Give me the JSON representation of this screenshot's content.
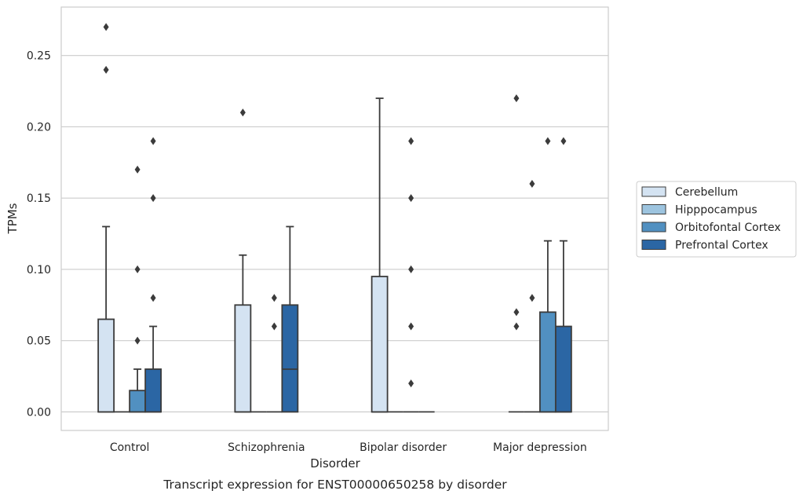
{
  "chart_data": {
    "type": "box",
    "title": "",
    "caption": "Transcript expression for ENST00000650258 by disorder",
    "xlabel": "Disorder",
    "ylabel": "TPMs",
    "ylim": [
      -0.013,
      0.284
    ],
    "yticks": [
      0.0,
      0.05,
      0.1,
      0.15,
      0.2,
      0.25
    ],
    "ytick_labels": [
      "0.00",
      "0.05",
      "0.10",
      "0.15",
      "0.20",
      "0.25"
    ],
    "grid": "horizontal",
    "legend_position": "right",
    "categories": [
      "Control",
      "Schizophrenia",
      "Bipolar disorder",
      "Major depression"
    ],
    "series": [
      {
        "name": "Cerebellum",
        "color": "#d4e3f2",
        "boxes": [
          {
            "q1": 0.0,
            "median": 0.0,
            "q3": 0.065,
            "whisker_low": 0.0,
            "whisker_high": 0.13,
            "outliers": [
              0.24,
              0.27
            ]
          },
          {
            "q1": 0.0,
            "median": 0.0,
            "q3": 0.075,
            "whisker_low": 0.0,
            "whisker_high": 0.11,
            "outliers": [
              0.21
            ]
          },
          {
            "q1": 0.0,
            "median": 0.0,
            "q3": 0.095,
            "whisker_low": 0.0,
            "whisker_high": 0.22,
            "outliers": []
          },
          {
            "q1": 0.0,
            "median": 0.0,
            "q3": 0.0,
            "whisker_low": 0.0,
            "whisker_high": 0.0,
            "outliers": [
              0.06,
              0.07,
              0.22
            ]
          }
        ]
      },
      {
        "name": "Hipppocampus",
        "color": "#9dc4df",
        "boxes": [
          {
            "q1": 0.0,
            "median": 0.0,
            "q3": 0.0,
            "whisker_low": 0.0,
            "whisker_high": 0.0,
            "outliers": []
          },
          {
            "q1": 0.0,
            "median": 0.0,
            "q3": 0.0,
            "whisker_low": 0.0,
            "whisker_high": 0.0,
            "outliers": []
          },
          {
            "q1": 0.0,
            "median": 0.0,
            "q3": 0.0,
            "whisker_low": 0.0,
            "whisker_high": 0.0,
            "outliers": []
          },
          {
            "q1": 0.0,
            "median": 0.0,
            "q3": 0.0,
            "whisker_low": 0.0,
            "whisker_high": 0.0,
            "outliers": [
              0.08,
              0.16
            ]
          }
        ]
      },
      {
        "name": "Orbitofontal Cortex",
        "color": "#5190c1",
        "boxes": [
          {
            "q1": 0.0,
            "median": 0.0,
            "q3": 0.015,
            "whisker_low": 0.0,
            "whisker_high": 0.03,
            "outliers": [
              0.05,
              0.1,
              0.17
            ]
          },
          {
            "q1": 0.0,
            "median": 0.0,
            "q3": 0.0,
            "whisker_low": 0.0,
            "whisker_high": 0.0,
            "outliers": [
              0.06,
              0.08
            ]
          },
          {
            "q1": 0.0,
            "median": 0.0,
            "q3": 0.0,
            "whisker_low": 0.0,
            "whisker_high": 0.0,
            "outliers": [
              0.02,
              0.06,
              0.1,
              0.15,
              0.19
            ]
          },
          {
            "q1": 0.0,
            "median": 0.0,
            "q3": 0.07,
            "whisker_low": 0.0,
            "whisker_high": 0.12,
            "outliers": [
              0.19
            ]
          }
        ]
      },
      {
        "name": "Prefrontal Cortex",
        "color": "#2b66a4",
        "boxes": [
          {
            "q1": 0.0,
            "median": 0.0,
            "q3": 0.03,
            "whisker_low": 0.0,
            "whisker_high": 0.06,
            "outliers": [
              0.08,
              0.15,
              0.19
            ]
          },
          {
            "q1": 0.0,
            "median": 0.03,
            "q3": 0.075,
            "whisker_low": 0.0,
            "whisker_high": 0.13,
            "outliers": []
          },
          {
            "q1": 0.0,
            "median": 0.0,
            "q3": 0.0,
            "whisker_low": 0.0,
            "whisker_high": 0.0,
            "outliers": []
          },
          {
            "q1": 0.0,
            "median": 0.0,
            "q3": 0.06,
            "whisker_low": 0.0,
            "whisker_high": 0.12,
            "outliers": [
              0.19
            ]
          }
        ]
      }
    ]
  }
}
